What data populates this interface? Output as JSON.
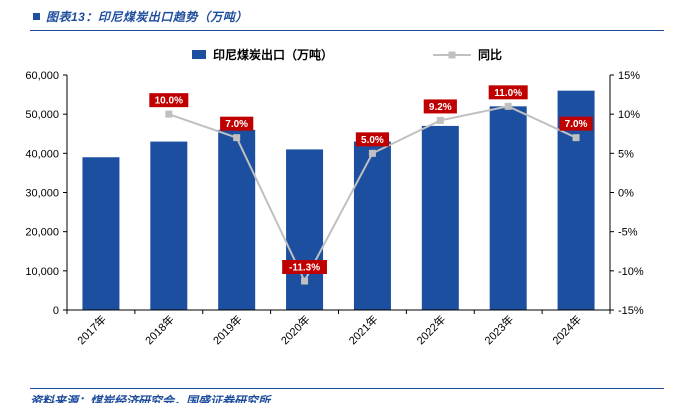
{
  "header": {
    "title": "图表13：印尼煤炭出口趋势（万吨）"
  },
  "legend": {
    "bar_label": "印尼煤炭出口（万吨）",
    "line_label": "同比"
  },
  "footer": {
    "source": "资料来源：煤炭经济研究会，国盛证券研究所"
  },
  "colors": {
    "accent": "#1F4E9F",
    "bar": "#1D4FA1",
    "line": "#C0C0C0",
    "label_bg": "#C00000",
    "label_text": "#FFFFFF",
    "axis": "#000000"
  },
  "chart_data": {
    "type": "bar+line",
    "title": "印尼煤炭出口趋势（万吨）",
    "categories": [
      "2017年",
      "2018年",
      "2019年",
      "2020年",
      "2021年",
      "2022年",
      "2023年",
      "2024年"
    ],
    "series": [
      {
        "name": "印尼煤炭出口（万吨）",
        "type": "bar",
        "axis": "left",
        "values": [
          39000,
          43000,
          46000,
          41000,
          43000,
          47000,
          52000,
          56000
        ]
      },
      {
        "name": "同比",
        "type": "line",
        "axis": "right",
        "values": [
          null,
          10.0,
          7.0,
          -11.3,
          5.0,
          9.2,
          11.0,
          7.0
        ],
        "labels": [
          null,
          "10.0%",
          "7.0%",
          "-11.3%",
          "5.0%",
          "9.2%",
          "11.0%",
          "7.0%"
        ]
      }
    ],
    "left_axis": {
      "min": 0,
      "max": 60000,
      "step": 10000,
      "tick_labels": [
        "0",
        "10,000",
        "20,000",
        "30,000",
        "40,000",
        "50,000",
        "60,000"
      ]
    },
    "right_axis": {
      "min": -15,
      "max": 15,
      "step": 5,
      "tick_labels": [
        "-15%",
        "-10%",
        "-5%",
        "0%",
        "5%",
        "10%",
        "15%"
      ]
    },
    "grid": false,
    "legend_position": "top"
  }
}
